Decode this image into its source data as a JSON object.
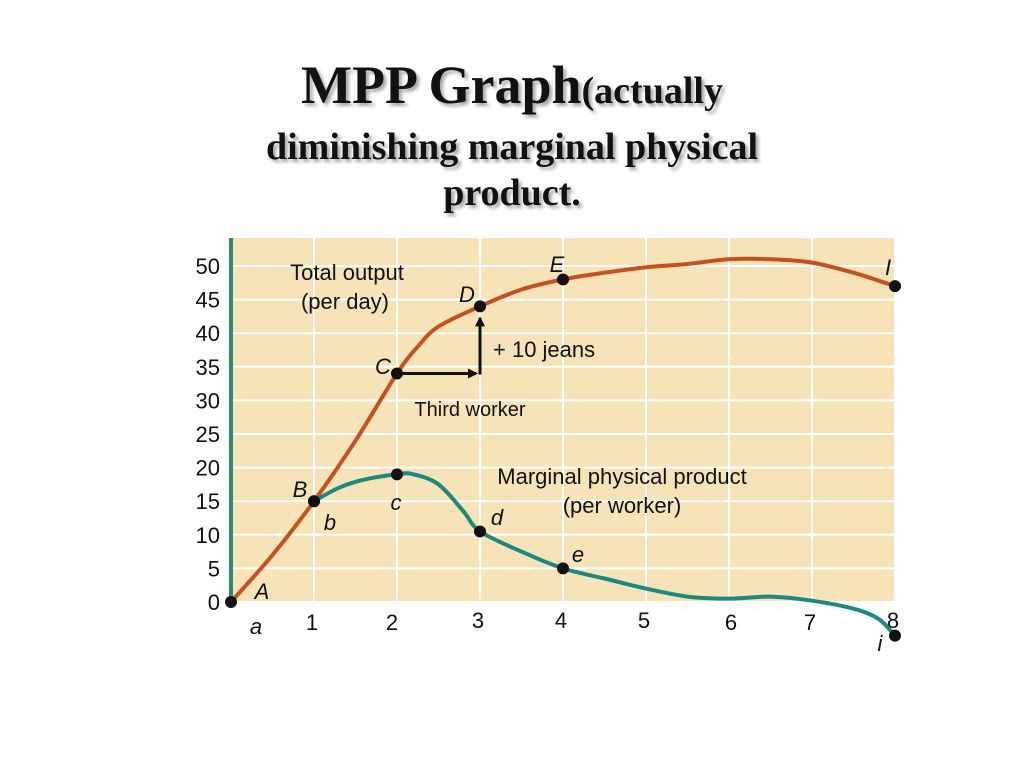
{
  "title": {
    "main": "MPP Graph",
    "paren": "(actually",
    "line2": "diminishing marginal physical",
    "line3": "product."
  },
  "chart_data": {
    "type": "line",
    "x": [
      0,
      1,
      2,
      3,
      4,
      5,
      6,
      7,
      8
    ],
    "x_ticks": [
      "1",
      "2",
      "3",
      "4",
      "5",
      "6",
      "7",
      "8"
    ],
    "y_ticks": [
      "0",
      "5",
      "10",
      "15",
      "20",
      "25",
      "30",
      "35",
      "40",
      "45",
      "50"
    ],
    "xlim": [
      0,
      8
    ],
    "ylim": [
      0,
      52
    ],
    "grid": true,
    "background": "#f7e3b8",
    "grid_color": "#ffffff",
    "axis_color": "#2e8b6e",
    "series": [
      {
        "id": "total",
        "label_lines": [
          "Total output",
          "(per day)"
        ],
        "color": "#c8501e",
        "points": [
          {
            "x": 0,
            "y": 0,
            "label": "A"
          },
          {
            "x": 1,
            "y": 15,
            "label": "B"
          },
          {
            "x": 2,
            "y": 34,
            "label": "C"
          },
          {
            "x": 3,
            "y": 44,
            "label": "D"
          },
          {
            "x": 4,
            "y": 48,
            "label": "E"
          },
          {
            "x": 8,
            "y": 47,
            "label": "I"
          }
        ],
        "curve": [
          [
            0,
            0
          ],
          [
            0.5,
            7
          ],
          [
            1,
            15
          ],
          [
            1.5,
            24
          ],
          [
            2,
            34
          ],
          [
            2.25,
            38
          ],
          [
            2.5,
            41
          ],
          [
            3,
            44
          ],
          [
            3.5,
            46.5
          ],
          [
            4,
            48
          ],
          [
            4.5,
            49
          ],
          [
            5,
            49.8
          ],
          [
            5.5,
            50.3
          ],
          [
            6,
            51
          ],
          [
            6.5,
            51
          ],
          [
            7,
            50.5
          ],
          [
            7.5,
            49
          ],
          [
            8,
            47
          ]
        ]
      },
      {
        "id": "mpp",
        "label_lines": [
          "Marginal physical product",
          "(per worker)"
        ],
        "color": "#1a8a7e",
        "points": [
          {
            "x": 1,
            "y": 15,
            "label": "b"
          },
          {
            "x": 2,
            "y": 19,
            "label": "c"
          },
          {
            "x": 3,
            "y": 10.5,
            "label": "d"
          },
          {
            "x": 4,
            "y": 5,
            "label": "e"
          },
          {
            "x": 8,
            "y": -5,
            "label": "i"
          }
        ],
        "curve": [
          [
            1,
            15
          ],
          [
            1.3,
            17
          ],
          [
            1.6,
            18.2
          ],
          [
            2,
            19
          ],
          [
            2.2,
            19
          ],
          [
            2.5,
            17.5
          ],
          [
            2.8,
            13.5
          ],
          [
            3,
            10.5
          ],
          [
            3.5,
            7.5
          ],
          [
            4,
            5
          ],
          [
            4.5,
            3.5
          ],
          [
            5,
            2
          ],
          [
            5.5,
            0.8
          ],
          [
            6,
            0.5
          ],
          [
            6.5,
            0.8
          ],
          [
            7,
            0.2
          ],
          [
            7.5,
            -1
          ],
          [
            7.8,
            -2.5
          ],
          [
            8,
            -5
          ]
        ]
      }
    ],
    "annotations": {
      "jeans": "+ 10 jeans",
      "worker": "Third worker",
      "a_label": "a"
    }
  }
}
